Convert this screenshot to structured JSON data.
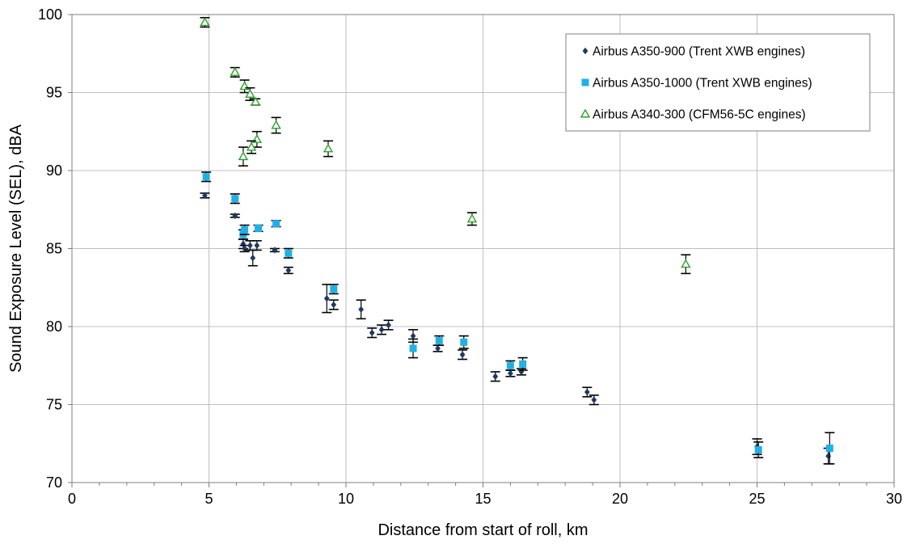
{
  "chart_data": {
    "type": "scatter",
    "xlabel": "Distance from start of roll, km",
    "ylabel": "Sound Exposure Level (SEL), dBA",
    "xlim": [
      0,
      30
    ],
    "ylim": [
      70,
      100
    ],
    "x_ticks": [
      "0",
      "5",
      "10",
      "15",
      "20",
      "25",
      "30"
    ],
    "y_ticks": [
      "70",
      "75",
      "80",
      "85",
      "90",
      "95",
      "100"
    ],
    "grid": true,
    "legend_position": "top-right",
    "series": [
      {
        "name": "Airbus A350-900 (Trent XWB engines)",
        "marker": "diamond",
        "color": "#1f3864",
        "points": [
          {
            "x": 4.85,
            "y": 88.4,
            "err": 0.15
          },
          {
            "x": 5.95,
            "y": 87.1,
            "err": 0.1
          },
          {
            "x": 6.25,
            "y": 85.3,
            "err": 0.3
          },
          {
            "x": 6.3,
            "y": 85.0,
            "err": 0.2
          },
          {
            "x": 6.5,
            "y": 85.2,
            "err": 0.3
          },
          {
            "x": 6.6,
            "y": 84.4,
            "err": 0.5
          },
          {
            "x": 6.75,
            "y": 85.2,
            "err": 0.3
          },
          {
            "x": 7.4,
            "y": 84.9,
            "err": 0.1
          },
          {
            "x": 7.9,
            "y": 83.6,
            "err": 0.2
          },
          {
            "x": 9.3,
            "y": 81.8,
            "err": 0.9
          },
          {
            "x": 9.55,
            "y": 81.4,
            "err": 0.3
          },
          {
            "x": 10.55,
            "y": 81.1,
            "err": 0.6
          },
          {
            "x": 10.95,
            "y": 79.6,
            "err": 0.3
          },
          {
            "x": 11.3,
            "y": 79.8,
            "err": 0.3
          },
          {
            "x": 11.55,
            "y": 80.1,
            "err": 0.3
          },
          {
            "x": 12.45,
            "y": 79.4,
            "err": 0.4
          },
          {
            "x": 13.35,
            "y": 78.6,
            "err": 0.2
          },
          {
            "x": 14.25,
            "y": 78.2,
            "err": 0.3
          },
          {
            "x": 15.45,
            "y": 76.8,
            "err": 0.3
          },
          {
            "x": 16.0,
            "y": 77.0,
            "err": 0.2
          },
          {
            "x": 16.4,
            "y": 77.1,
            "err": 0.2
          },
          {
            "x": 18.8,
            "y": 75.8,
            "err": 0.3
          },
          {
            "x": 19.05,
            "y": 75.3,
            "err": 0.3
          },
          {
            "x": 25.0,
            "y": 72.3,
            "err": 0.5
          },
          {
            "x": 27.6,
            "y": 71.7,
            "err": 0.5
          }
        ]
      },
      {
        "name": "Airbus A350-1000 (Trent XWB engines)",
        "marker": "square",
        "color": "#1fb1e6",
        "points": [
          {
            "x": 4.9,
            "y": 89.6,
            "err": 0.3
          },
          {
            "x": 5.95,
            "y": 88.2,
            "err": 0.3
          },
          {
            "x": 6.25,
            "y": 85.9,
            "err": 0.3
          },
          {
            "x": 6.3,
            "y": 86.2,
            "err": 0.3
          },
          {
            "x": 6.8,
            "y": 86.3,
            "err": 0.2
          },
          {
            "x": 7.45,
            "y": 86.6,
            "err": 0.2
          },
          {
            "x": 7.9,
            "y": 84.7,
            "err": 0.3
          },
          {
            "x": 9.55,
            "y": 82.4,
            "err": 0.3
          },
          {
            "x": 12.45,
            "y": 78.6,
            "err": 0.6
          },
          {
            "x": 13.4,
            "y": 79.1,
            "err": 0.3
          },
          {
            "x": 14.3,
            "y": 79.0,
            "err": 0.4
          },
          {
            "x": 16.0,
            "y": 77.5,
            "err": 0.3
          },
          {
            "x": 16.45,
            "y": 77.6,
            "err": 0.4
          },
          {
            "x": 25.05,
            "y": 72.1,
            "err": 0.5
          },
          {
            "x": 27.65,
            "y": 72.2,
            "err": 1.0
          }
        ]
      },
      {
        "name": "Airbus A340-300 (CFM56-5C engines)",
        "marker": "triangle",
        "color": "#2ca02c",
        "points": [
          {
            "x": 4.85,
            "y": 99.5,
            "err": 0.3
          },
          {
            "x": 5.95,
            "y": 96.3,
            "err": 0.3
          },
          {
            "x": 6.3,
            "y": 95.4,
            "err": 0.4
          },
          {
            "x": 6.5,
            "y": 94.9,
            "err": 0.4
          },
          {
            "x": 6.7,
            "y": 94.4,
            "err": 0.2
          },
          {
            "x": 7.45,
            "y": 92.9,
            "err": 0.5
          },
          {
            "x": 6.75,
            "y": 92.0,
            "err": 0.5
          },
          {
            "x": 6.55,
            "y": 91.5,
            "err": 0.4
          },
          {
            "x": 6.25,
            "y": 90.9,
            "err": 0.6
          },
          {
            "x": 9.35,
            "y": 91.4,
            "err": 0.5
          },
          {
            "x": 14.6,
            "y": 86.9,
            "err": 0.4
          },
          {
            "x": 22.4,
            "y": 84.0,
            "err": 0.6
          }
        ]
      }
    ]
  }
}
